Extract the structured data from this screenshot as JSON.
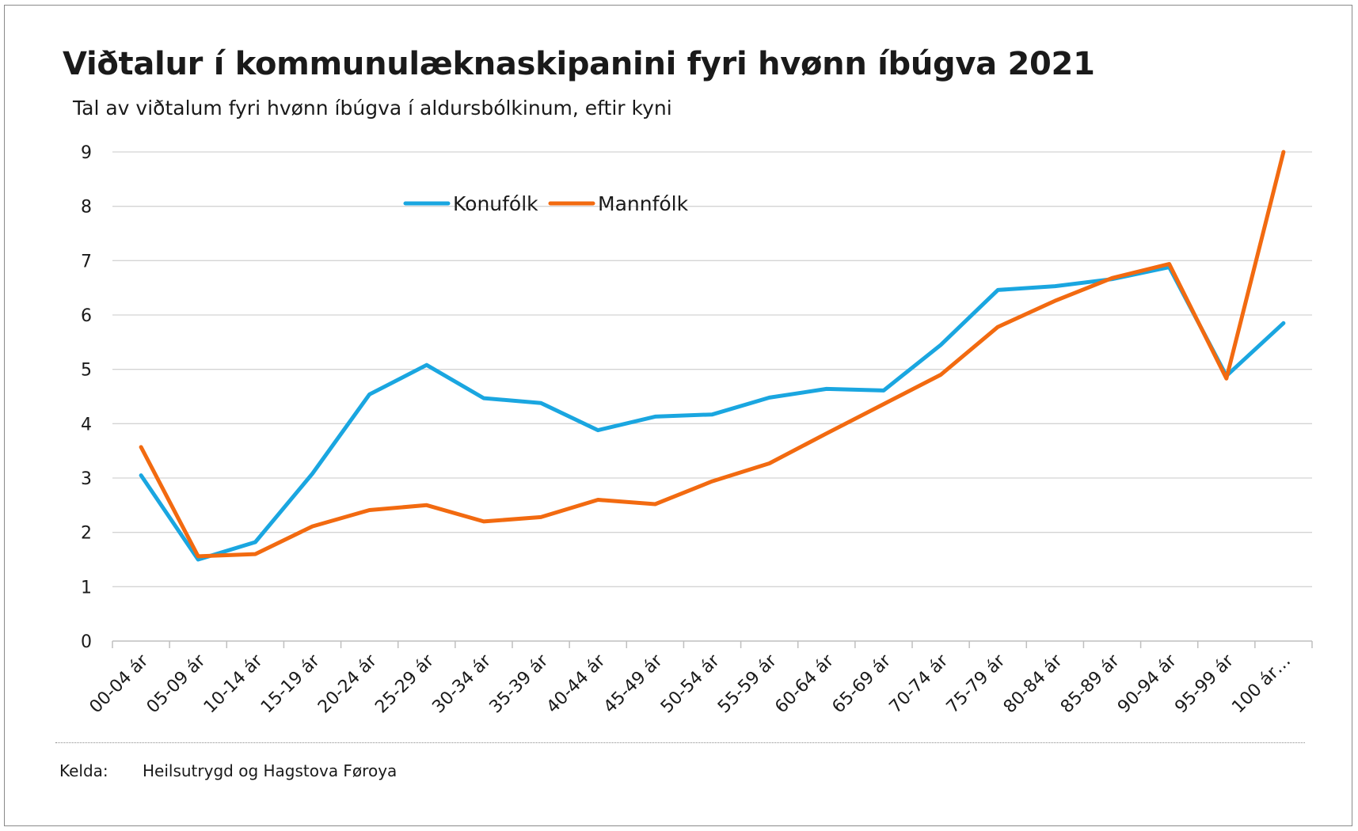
{
  "colors": {
    "konufolk": "#1aa6e0",
    "mannfolk": "#f26a10",
    "grid": "#d4d4d4",
    "axis": "#bfbfbf"
  },
  "chart_data": {
    "type": "line",
    "title": "Viðtalur í kommunulæknaskipanini fyri hvønn íbúgva 2021",
    "subtitle": "Tal av viðtalum fyri hvønn íbúgva í aldursbólkinum, eftir kyni",
    "xlabel": "",
    "ylabel": "",
    "ylim": [
      0,
      9
    ],
    "yticks": [
      "0",
      "1",
      "2",
      "3",
      "4",
      "5",
      "6",
      "7",
      "8",
      "9"
    ],
    "grid": true,
    "legend": "top-center",
    "categories": [
      "00-04 ár",
      "05-09 ár",
      "10-14 ár",
      "15-19 ár",
      "20-24 ár",
      "25-29 ár",
      "30-34 ár",
      "35-39 ár",
      "40-44 ár",
      "45-49 ár",
      "50-54 ár",
      "55-59 ár",
      "60-64 ár",
      "65-69 ár",
      "70-74 ár",
      "75-79 ár",
      "80-84 ár",
      "85-89 ár",
      "90-94 ár",
      "95-99 ár",
      "100 ár…"
    ],
    "series": [
      {
        "name": "Konufólk",
        "color": "#1aa6e0",
        "values": [
          3.05,
          1.5,
          1.82,
          3.08,
          4.54,
          5.08,
          4.47,
          4.38,
          3.88,
          4.13,
          4.17,
          4.48,
          4.64,
          4.61,
          5.45,
          6.46,
          6.53,
          6.66,
          6.88,
          4.88,
          5.85
        ]
      },
      {
        "name": "Mannfólk",
        "color": "#f26a10",
        "values": [
          3.57,
          1.56,
          1.6,
          2.11,
          2.41,
          2.5,
          2.2,
          2.28,
          2.6,
          2.52,
          2.94,
          3.27,
          3.82,
          4.36,
          4.9,
          5.78,
          6.26,
          6.68,
          6.94,
          4.83,
          9.0
        ]
      }
    ]
  },
  "footer": {
    "source_label": "Kelda:",
    "source_value": "Heilsutrygd og Hagstova Føroya"
  }
}
